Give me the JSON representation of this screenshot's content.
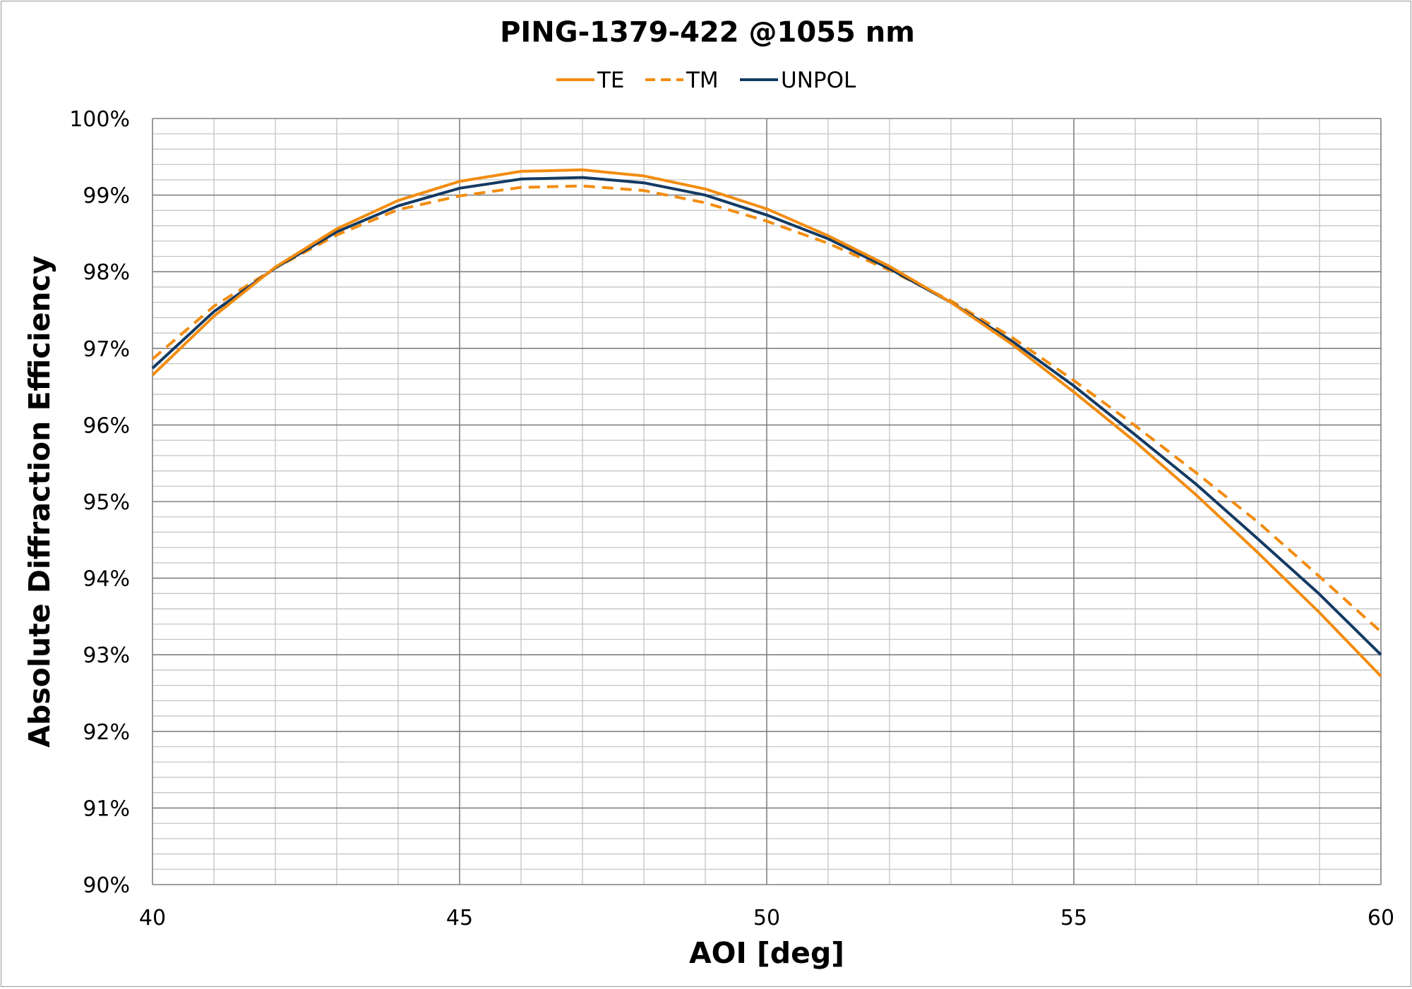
{
  "chart_data": {
    "type": "line",
    "title": "PING-1379-422 @1055 nm",
    "xlabel": "AOI [deg]",
    "ylabel": "Absolute Diffraction Efficiency",
    "xlim": [
      40,
      60
    ],
    "ylim": [
      90,
      100
    ],
    "x_ticks": [
      "40",
      "45",
      "50",
      "55",
      "60"
    ],
    "y_ticks": [
      "90%",
      "91%",
      "92%",
      "93%",
      "94%",
      "95%",
      "96%",
      "97%",
      "98%",
      "99%",
      "100%"
    ],
    "grid": true,
    "legend_position": "top",
    "x": [
      40,
      41,
      42,
      43,
      44,
      45,
      46,
      47,
      48,
      49,
      50,
      51,
      52,
      53,
      54,
      55,
      56,
      57,
      58,
      59,
      60
    ],
    "series": [
      {
        "name": "TE",
        "color": "#f28c0f",
        "style": "solid",
        "values": [
          96.65,
          97.42,
          98.06,
          98.56,
          98.93,
          99.18,
          99.31,
          99.33,
          99.25,
          99.08,
          98.82,
          98.47,
          98.07,
          97.6,
          97.05,
          96.43,
          95.78,
          95.08,
          94.33,
          93.55,
          92.72
        ]
      },
      {
        "name": "TM",
        "color": "#f28c0f",
        "style": "dashed",
        "values": [
          96.86,
          97.55,
          98.05,
          98.48,
          98.81,
          98.99,
          99.1,
          99.12,
          99.06,
          98.9,
          98.66,
          98.37,
          98.02,
          97.62,
          97.14,
          96.58,
          95.99,
          95.37,
          94.73,
          94.02,
          93.3
        ]
      },
      {
        "name": "UNPOL",
        "color": "#133a63",
        "style": "solid",
        "values": [
          96.74,
          97.48,
          98.05,
          98.52,
          98.86,
          99.09,
          99.21,
          99.23,
          99.16,
          99.0,
          98.74,
          98.43,
          98.04,
          97.6,
          97.09,
          96.51,
          95.87,
          95.22,
          94.51,
          93.79,
          93.0
        ]
      }
    ]
  }
}
